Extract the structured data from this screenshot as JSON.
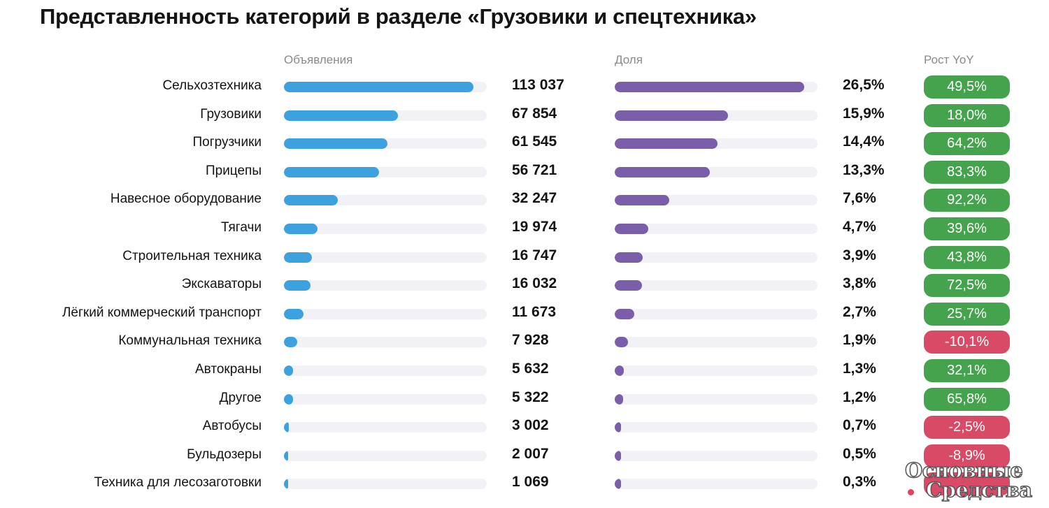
{
  "title": "Представленность категорий в разделе «Грузовики и спецтехника»",
  "headers": {
    "ads": "Объявления",
    "share": "Доля",
    "growth": "Рост YoY"
  },
  "watermark": "Основные Средства",
  "colors": {
    "ads_bar": "#3da1df",
    "share_bar": "#7a5ea9",
    "positive": "#45a34d",
    "negative": "#d94a67",
    "track": "#f2f1f5"
  },
  "chart_data": {
    "type": "table",
    "categories": [
      "Сельхозтехника",
      "Грузовики",
      "Погрузчики",
      "Прицепы",
      "Навесное оборудование",
      "Тягачи",
      "Строительная техника",
      "Экскаваторы",
      "Лёгкий коммерческий транспорт",
      "Коммунальная техника",
      "Автокраны",
      "Другое",
      "Автобусы",
      "Бульдозеры",
      "Техника для лесозаготовки"
    ],
    "ads": [
      113037,
      67854,
      61545,
      56721,
      32247,
      19974,
      16747,
      16032,
      11673,
      7928,
      5632,
      5322,
      3002,
      2007,
      1069
    ],
    "ads_labels": [
      "113 037",
      "67 854",
      "61 545",
      "56 721",
      "32 247",
      "19 974",
      "16 747",
      "16 032",
      "11 673",
      "7 928",
      "5 632",
      "5 322",
      "3 002",
      "2 007",
      "1 069"
    ],
    "share": [
      26.5,
      15.9,
      14.4,
      13.3,
      7.6,
      4.7,
      3.9,
      3.8,
      2.7,
      1.9,
      1.3,
      1.2,
      0.7,
      0.5,
      0.3
    ],
    "share_labels": [
      "26,5%",
      "15,9%",
      "14,4%",
      "13,3%",
      "7,6%",
      "4,7%",
      "3,9%",
      "3,8%",
      "2,7%",
      "1,9%",
      "1,3%",
      "1,2%",
      "0,7%",
      "0,5%",
      "0,3%"
    ],
    "growth": [
      49.5,
      18.0,
      64.2,
      83.3,
      92.2,
      39.6,
      43.8,
      72.5,
      25.7,
      -10.1,
      32.1,
      65.8,
      -2.5,
      -8.9,
      null
    ],
    "growth_labels": [
      "49,5%",
      "18,0%",
      "64,2%",
      "83,3%",
      "92,2%",
      "39,6%",
      "43,8%",
      "72,5%",
      "25,7%",
      "-10,1%",
      "32,1%",
      "65,8%",
      "-2,5%",
      "-8,9%",
      ""
    ],
    "growth_sign": [
      "pos",
      "pos",
      "pos",
      "pos",
      "pos",
      "pos",
      "pos",
      "pos",
      "pos",
      "neg",
      "pos",
      "pos",
      "neg",
      "neg",
      "neg"
    ],
    "ads_max": 121000,
    "share_max": 28.4
  }
}
